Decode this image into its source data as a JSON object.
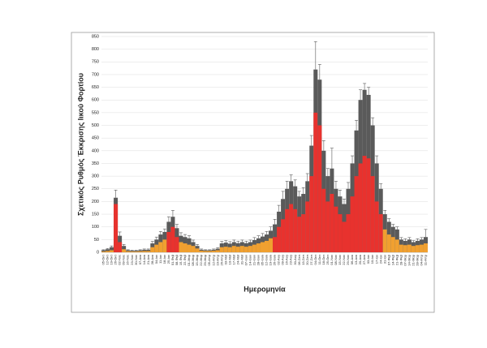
{
  "chart_data": {
    "type": "bar",
    "y_label": "Σχετικός Ρυθμός Έκκρισης Ιικού Φορτίου",
    "x_label": "Ημερομηνία",
    "categories": [
      "05-Οκτ",
      "12-Οκτ",
      "19-Οκτ",
      "26-Οκτ",
      "02-Νοε",
      "09-Νοε",
      "16-Νοε",
      "23-Νοε",
      "30-Νοε",
      "07-Δεκ",
      "14-Δεκ",
      "21-Δεκ",
      "28-Δεκ",
      "04-Ιαν",
      "11-Ιαν",
      "18-Ιαν",
      "25-Ιαν",
      "01-Φεβ",
      "08-Φεβ",
      "15-Φεβ",
      "22-Φεβ",
      "01-Μαρ",
      "08-Μαρ",
      "15-Μαρ",
      "22-Μαρ",
      "29-Μαρ",
      "05-Απρ",
      "12-Απρ",
      "19-Απρ",
      "26-Απρ",
      "03-Μαϊ",
      "10-Μαϊ",
      "17-Μαϊ",
      "24-Μαϊ",
      "31-Μαϊ",
      "07-Ιουν",
      "14-Ιουν",
      "21-Ιουν",
      "28-Ιουν",
      "05-Ιουλ",
      "12-Ιουλ",
      "19-Ιουλ",
      "26-Ιουλ",
      "02-Αυγ",
      "09-Αυγ",
      "16-Αυγ",
      "23-Αυγ",
      "30-Αυγ",
      "06-Σεπ",
      "13-Σεπ",
      "20-Σεπ",
      "27-Σεπ",
      "04-Οκτ",
      "11-Οκτ",
      "18-Οκτ",
      "25-Οκτ",
      "01-Νοε",
      "08-Νοε",
      "15-Νοε",
      "22-Νοε",
      "29-Νοε",
      "06-Δεκ",
      "13-Δεκ",
      "20-Δεκ",
      "27-Δεκ",
      "03-Ιαν",
      "10-Ιαν",
      "17-Ιαν",
      "24-Ιαν",
      "31-Ιαν",
      "07-Φεβ",
      "14-Φεβ",
      "21-Φεβ",
      "28-Φεβ",
      "07-Μαρ",
      "14-Μαρ",
      "21-Μαρ",
      "28-Μαρ",
      "04-Απρ",
      "11-Απρ"
    ],
    "values": [
      3,
      5,
      8,
      190,
      40,
      12,
      4,
      3,
      3,
      4,
      5,
      5,
      20,
      30,
      40,
      50,
      80,
      100,
      60,
      40,
      35,
      30,
      25,
      15,
      6,
      5,
      5,
      6,
      8,
      20,
      22,
      20,
      25,
      22,
      25,
      22,
      25,
      30,
      35,
      40,
      45,
      55,
      60,
      100,
      130,
      170,
      190,
      170,
      140,
      150,
      200,
      300,
      550,
      500,
      250,
      200,
      230,
      180,
      150,
      120,
      150,
      220,
      300,
      350,
      380,
      370,
      300,
      200,
      150,
      90,
      70,
      60,
      50,
      30,
      28,
      30,
      25,
      28,
      30,
      35
    ],
    "upper": [
      8,
      12,
      20,
      215,
      65,
      25,
      8,
      6,
      6,
      8,
      10,
      10,
      35,
      50,
      70,
      80,
      120,
      140,
      95,
      65,
      60,
      55,
      40,
      25,
      10,
      8,
      8,
      10,
      14,
      35,
      38,
      34,
      40,
      36,
      40,
      36,
      40,
      48,
      55,
      62,
      70,
      85,
      110,
      160,
      210,
      250,
      280,
      260,
      220,
      230,
      280,
      420,
      720,
      680,
      400,
      300,
      330,
      250,
      220,
      190,
      250,
      350,
      480,
      600,
      640,
      620,
      500,
      350,
      250,
      150,
      120,
      100,
      90,
      50,
      45,
      50,
      40,
      45,
      50,
      60
    ],
    "errors": [
      2,
      3,
      5,
      30,
      15,
      6,
      2,
      2,
      2,
      2,
      3,
      3,
      8,
      10,
      12,
      12,
      20,
      25,
      15,
      12,
      10,
      10,
      8,
      6,
      3,
      2,
      2,
      3,
      4,
      8,
      8,
      8,
      8,
      8,
      8,
      8,
      8,
      10,
      10,
      12,
      12,
      15,
      20,
      25,
      30,
      30,
      25,
      25,
      20,
      25,
      30,
      40,
      110,
      60,
      40,
      30,
      80,
      30,
      25,
      20,
      25,
      30,
      40,
      40,
      25,
      30,
      30,
      30,
      20,
      15,
      12,
      10,
      10,
      8,
      8,
      8,
      6,
      8,
      8,
      30
    ],
    "colors": [
      "#f0a030",
      "#f0a030",
      "#f0a030",
      "#e8322e",
      "#e8322e",
      "#f0a030",
      "#f0a030",
      "#f0a030",
      "#f0a030",
      "#f0a030",
      "#f0a030",
      "#f0a030",
      "#f0a030",
      "#f0a030",
      "#f0a030",
      "#f0a030",
      "#e8322e",
      "#e8322e",
      "#e8322e",
      "#f0a030",
      "#f0a030",
      "#f0a030",
      "#f0a030",
      "#f0a030",
      "#f0a030",
      "#f0a030",
      "#f0a030",
      "#f0a030",
      "#f0a030",
      "#f0a030",
      "#f0a030",
      "#f0a030",
      "#f0a030",
      "#f0a030",
      "#f0a030",
      "#f0a030",
      "#f0a030",
      "#f0a030",
      "#f0a030",
      "#f0a030",
      "#f0a030",
      "#f0a030",
      "#e8322e",
      "#e8322e",
      "#e8322e",
      "#e8322e",
      "#e8322e",
      "#e8322e",
      "#e8322e",
      "#e8322e",
      "#e8322e",
      "#e8322e",
      "#e8322e",
      "#e8322e",
      "#e8322e",
      "#e8322e",
      "#e8322e",
      "#e8322e",
      "#e8322e",
      "#e8322e",
      "#e8322e",
      "#e8322e",
      "#e8322e",
      "#e8322e",
      "#e8322e",
      "#e8322e",
      "#e8322e",
      "#e8322e",
      "#e8322e",
      "#f0a030",
      "#f0a030",
      "#f0a030",
      "#f0a030",
      "#f0a030",
      "#f0a030",
      "#f0a030",
      "#f0a030",
      "#f0a030",
      "#f0a030",
      "#f0a030"
    ],
    "upper_color": "#5a5a5a",
    "ylim": [
      0,
      850
    ],
    "yticks": [
      0,
      50,
      100,
      150,
      200,
      250,
      300,
      350,
      400,
      450,
      500,
      550,
      600,
      650,
      700,
      750,
      800,
      850
    ],
    "grid": true
  }
}
